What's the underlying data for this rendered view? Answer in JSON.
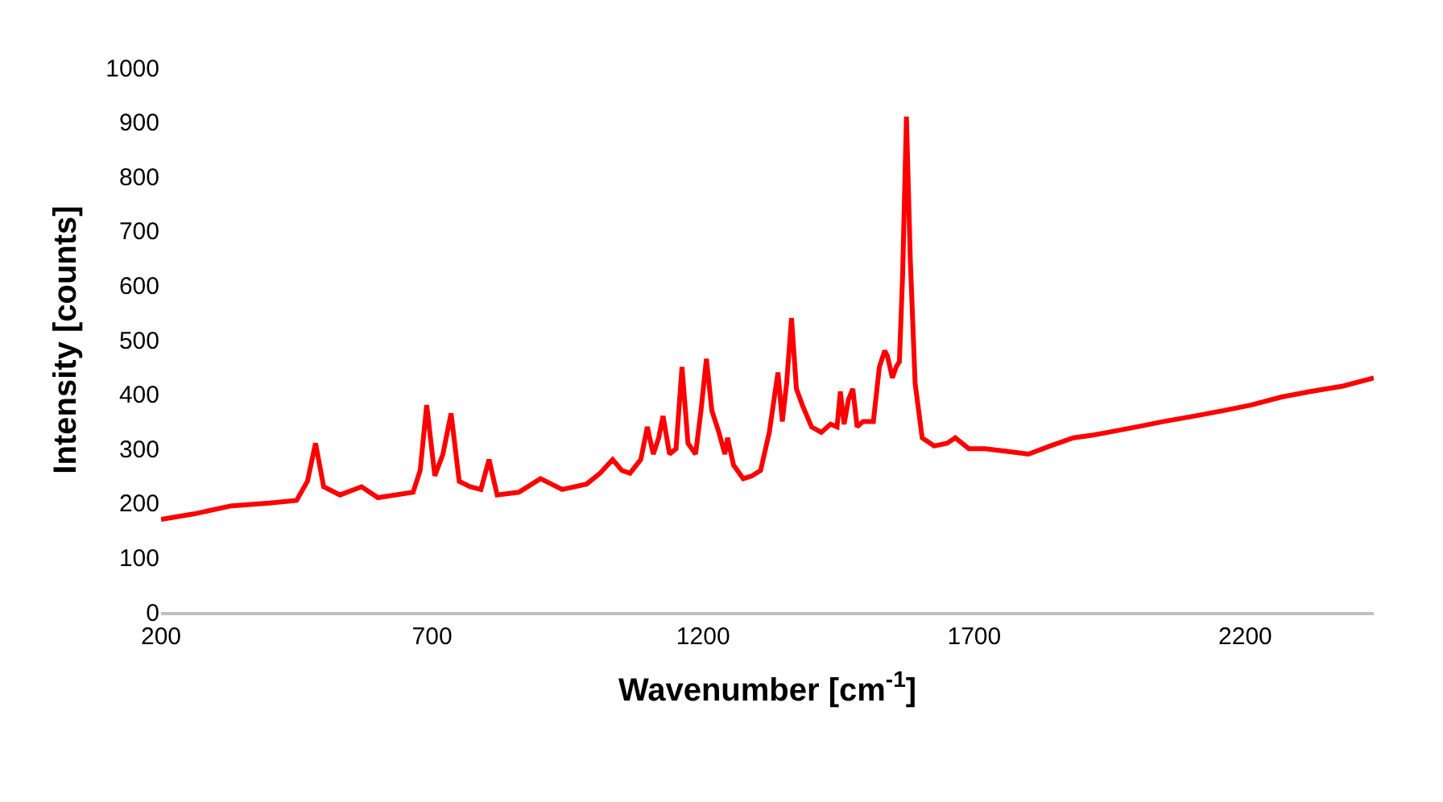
{
  "chart_data": {
    "type": "line",
    "xlabel": "Wavenumber [cm$^{-1}$]",
    "ylabel": "Intensity [counts]",
    "x": [
      200,
      260,
      330,
      400,
      450,
      470,
      485,
      500,
      530,
      570,
      600,
      665,
      678,
      690,
      705,
      720,
      735,
      750,
      770,
      790,
      805,
      820,
      860,
      900,
      940,
      985,
      1010,
      1033,
      1050,
      1065,
      1085,
      1097,
      1108,
      1118,
      1126,
      1138,
      1150,
      1161,
      1172,
      1186,
      1196,
      1206,
      1216,
      1229,
      1240,
      1245,
      1256,
      1274,
      1290,
      1306,
      1322,
      1338,
      1346,
      1354,
      1363,
      1372,
      1383,
      1400,
      1418,
      1435,
      1447,
      1453,
      1460,
      1468,
      1476,
      1484,
      1495,
      1514,
      1525,
      1535,
      1540,
      1549,
      1556,
      1562,
      1568,
      1575,
      1582,
      1591,
      1604,
      1626,
      1650,
      1665,
      1690,
      1720,
      1760,
      1800,
      1840,
      1883,
      1920,
      1947,
      2000,
      2050,
      2107,
      2160,
      2210,
      2267,
      2320,
      2380,
      2437
    ],
    "series": [
      {
        "color": "#ff0000",
        "values": [
          170,
          180,
          195,
          200,
          205,
          240,
          310,
          230,
          215,
          230,
          210,
          220,
          260,
          380,
          250,
          290,
          365,
          240,
          230,
          225,
          280,
          215,
          220,
          245,
          225,
          235,
          255,
          280,
          260,
          255,
          280,
          340,
          290,
          320,
          360,
          290,
          300,
          450,
          310,
          290,
          370,
          465,
          370,
          330,
          290,
          320,
          270,
          245,
          250,
          260,
          330,
          440,
          350,
          420,
          540,
          410,
          380,
          340,
          330,
          345,
          340,
          405,
          345,
          390,
          410,
          340,
          350,
          350,
          450,
          480,
          470,
          430,
          450,
          460,
          620,
          910,
          650,
          420,
          320,
          305,
          310,
          320,
          300,
          300,
          295,
          290,
          305,
          320,
          325,
          330,
          340,
          350,
          360,
          370,
          380,
          395,
          405,
          415,
          430
        ]
      }
    ],
    "xlim": [
      200,
      2437
    ],
    "xticks": [
      200,
      700,
      1200,
      1700,
      2200
    ],
    "ylim": [
      0,
      1000
    ],
    "yticks": [
      0,
      100,
      200,
      300,
      400,
      500,
      600,
      700,
      800,
      900,
      1000
    ],
    "grid": false,
    "marker": "none",
    "line_style": "solid"
  }
}
